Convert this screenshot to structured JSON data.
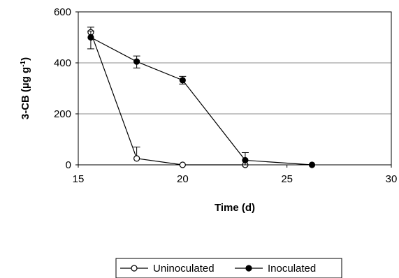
{
  "chart_data": {
    "type": "line",
    "xlabel": "Time (d)",
    "ylabel": {
      "base": "3-CB (µg g",
      "sup": "-1",
      "close": ")"
    },
    "xlim": [
      15,
      30
    ],
    "ylim": [
      0,
      600
    ],
    "xticks": [
      15,
      20,
      25,
      30
    ],
    "yticks": [
      0,
      200,
      400,
      600
    ],
    "grid": "horizontal",
    "legend": "bottom",
    "series": [
      {
        "name": "Uninoculated",
        "marker": "open-circle",
        "x": [
          15.6,
          17.8,
          20.0,
          23.0
        ],
        "y": [
          520,
          25,
          0,
          0
        ],
        "err_up": [
          20,
          45,
          0,
          0
        ],
        "err_down": [
          0,
          0,
          0,
          0
        ]
      },
      {
        "name": "Inoculated",
        "marker": "filled-circle",
        "x": [
          15.6,
          17.8,
          20.0,
          23.0,
          26.2
        ],
        "y": [
          500,
          405,
          332,
          18,
          0
        ],
        "err_up": [
          25,
          22,
          15,
          30,
          0
        ],
        "err_down": [
          45,
          25,
          15,
          18,
          0
        ]
      }
    ]
  }
}
